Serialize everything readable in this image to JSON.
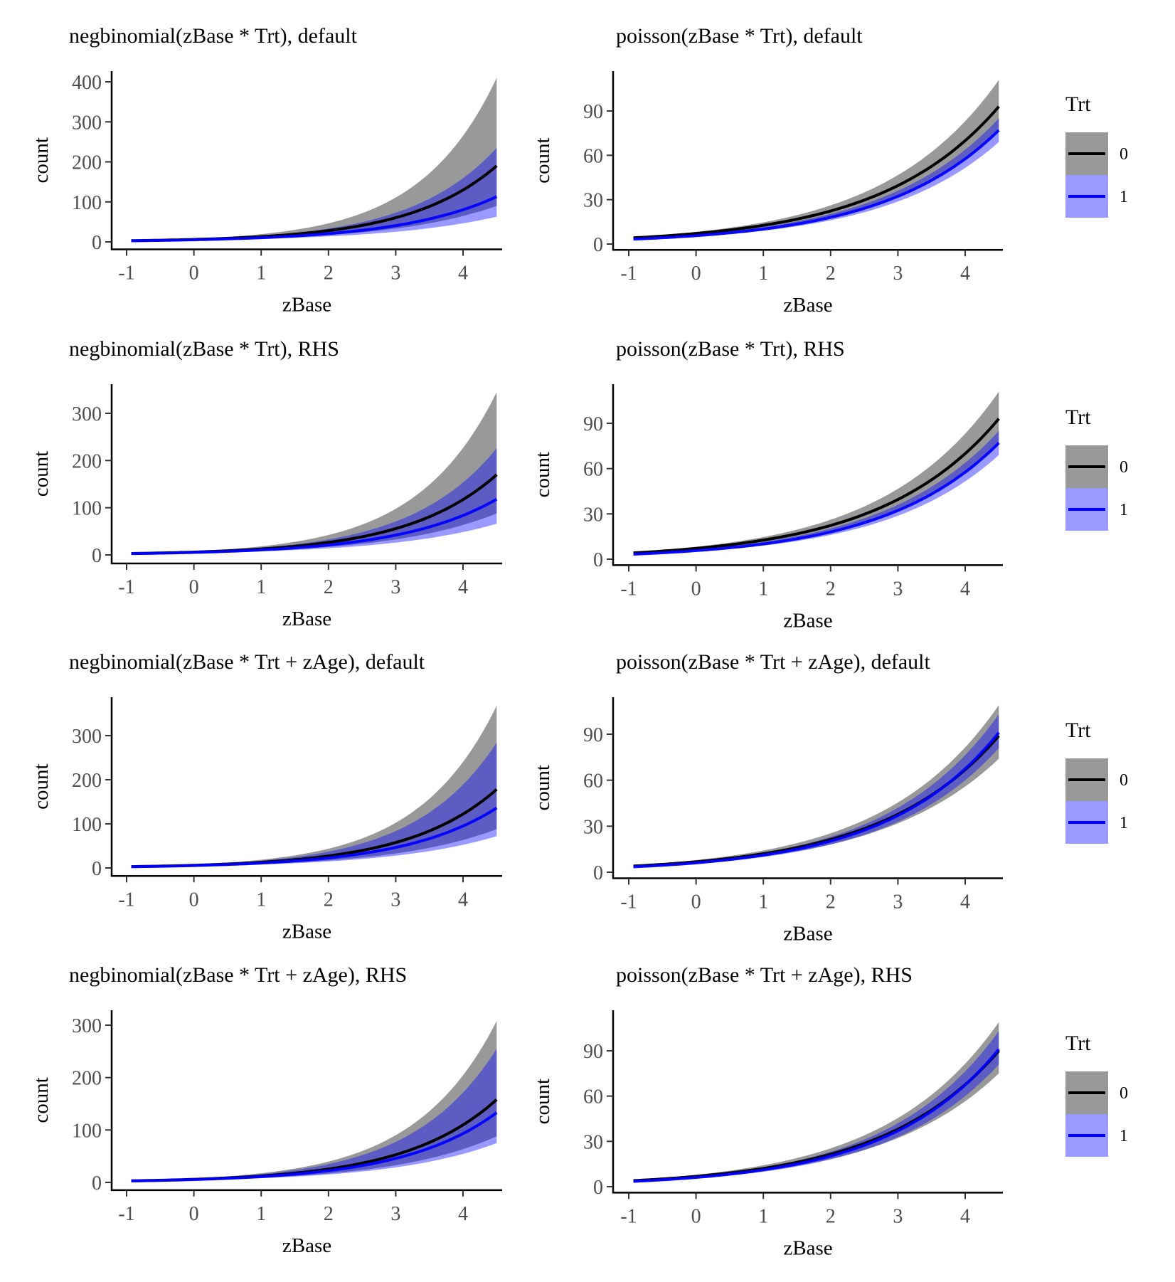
{
  "chart_data": [
    {
      "type": "line",
      "title": "negbinomial(zBase * Trt), default",
      "xlabel": "zBase",
      "ylabel": "count",
      "xlim": [
        -1.2,
        4.75
      ],
      "ylim": [
        -15,
        425
      ],
      "xticks": [
        -1,
        0,
        1,
        2,
        3,
        4
      ],
      "yticks": [
        0,
        100,
        200,
        300,
        400
      ],
      "xticklabels": [
        "-1",
        "0",
        "1",
        "2",
        "3",
        "4"
      ],
      "yticklabels": [
        "0",
        "100",
        "200",
        "300",
        "400"
      ],
      "x_range": [
        -0.93,
        4.5
      ],
      "series": [
        {
          "name": "0",
          "fit_at_x": [
            [
              -0.93,
              3.0
            ],
            [
              4.5,
              190
            ]
          ],
          "lower_at_x": [
            [
              -0.93,
              2.5
            ],
            [
              4.5,
              90
            ]
          ],
          "upper_at_x": [
            [
              -0.93,
              3.6
            ],
            [
              4.5,
              410
            ]
          ]
        },
        {
          "name": "1",
          "fit_at_x": [
            [
              -0.93,
              2.8
            ],
            [
              4.5,
              113
            ]
          ],
          "lower_at_x": [
            [
              -0.93,
              2.3
            ],
            [
              4.5,
              63
            ]
          ],
          "upper_at_x": [
            [
              -0.93,
              3.4
            ],
            [
              4.5,
              235
            ]
          ]
        }
      ],
      "legend": "none",
      "grid": false
    },
    {
      "type": "line",
      "title": "poisson(zBase * Trt), default",
      "xlabel": "zBase",
      "ylabel": "count",
      "xlim": [
        -1.2,
        4.75
      ],
      "ylim": [
        -3,
        115
      ],
      "xticks": [
        -1,
        0,
        1,
        2,
        3,
        4
      ],
      "yticks": [
        0,
        30,
        60,
        90
      ],
      "xticklabels": [
        "-1",
        "0",
        "1",
        "2",
        "3",
        "4"
      ],
      "yticklabels": [
        "0",
        "30",
        "60",
        "90"
      ],
      "x_range": [
        -0.93,
        4.5
      ],
      "series": [
        {
          "name": "0",
          "fit_at_x": [
            [
              -0.93,
              4.2
            ],
            [
              4.5,
              93
            ]
          ],
          "lower_at_x": [
            [
              -0.93,
              3.7
            ],
            [
              4.5,
              76
            ]
          ],
          "upper_at_x": [
            [
              -0.93,
              4.8
            ],
            [
              4.5,
              111
            ]
          ]
        },
        {
          "name": "1",
          "fit_at_x": [
            [
              -0.93,
              3.3
            ],
            [
              4.5,
              77
            ]
          ],
          "lower_at_x": [
            [
              -0.93,
              2.9
            ],
            [
              4.5,
              69
            ]
          ],
          "upper_at_x": [
            [
              -0.93,
              3.8
            ],
            [
              4.5,
              85
            ]
          ]
        }
      ],
      "legend": "right",
      "grid": false
    },
    {
      "type": "line",
      "title": "negbinomial(zBase * Trt), RHS",
      "xlabel": "zBase",
      "ylabel": "count",
      "xlim": [
        -1.2,
        4.75
      ],
      "ylim": [
        -15,
        365
      ],
      "xticks": [
        -1,
        0,
        1,
        2,
        3,
        4
      ],
      "yticks": [
        0,
        100,
        200,
        300
      ],
      "xticklabels": [
        "-1",
        "0",
        "1",
        "2",
        "3",
        "4"
      ],
      "yticklabels": [
        "0",
        "100",
        "200",
        "300"
      ],
      "x_range": [
        -0.93,
        4.5
      ],
      "series": [
        {
          "name": "0",
          "fit_at_x": [
            [
              -0.93,
              3.0
            ],
            [
              4.5,
              170
            ]
          ],
          "lower_at_x": [
            [
              -0.93,
              2.5
            ],
            [
              4.5,
              88
            ]
          ],
          "upper_at_x": [
            [
              -0.93,
              3.6
            ],
            [
              4.5,
              345
            ]
          ]
        },
        {
          "name": "1",
          "fit_at_x": [
            [
              -0.93,
              2.8
            ],
            [
              4.5,
              118
            ]
          ],
          "lower_at_x": [
            [
              -0.93,
              2.3
            ],
            [
              4.5,
              66
            ]
          ],
          "upper_at_x": [
            [
              -0.93,
              3.4
            ],
            [
              4.5,
              226
            ]
          ]
        }
      ],
      "legend": "none",
      "grid": false
    },
    {
      "type": "line",
      "title": "poisson(zBase * Trt), RHS",
      "xlabel": "zBase",
      "ylabel": "count",
      "xlim": [
        -1.2,
        4.75
      ],
      "ylim": [
        -3,
        115
      ],
      "xticks": [
        -1,
        0,
        1,
        2,
        3,
        4
      ],
      "yticks": [
        0,
        30,
        60,
        90
      ],
      "xticklabels": [
        "-1",
        "0",
        "1",
        "2",
        "3",
        "4"
      ],
      "yticklabels": [
        "0",
        "30",
        "60",
        "90"
      ],
      "x_range": [
        -0.93,
        4.5
      ],
      "series": [
        {
          "name": "0",
          "fit_at_x": [
            [
              -0.93,
              4.2
            ],
            [
              4.5,
              93
            ]
          ],
          "lower_at_x": [
            [
              -0.93,
              3.7
            ],
            [
              4.5,
              76
            ]
          ],
          "upper_at_x": [
            [
              -0.93,
              4.8
            ],
            [
              4.5,
              111
            ]
          ]
        },
        {
          "name": "1",
          "fit_at_x": [
            [
              -0.93,
              3.3
            ],
            [
              4.5,
              77
            ]
          ],
          "lower_at_x": [
            [
              -0.93,
              2.9
            ],
            [
              4.5,
              69
            ]
          ],
          "upper_at_x": [
            [
              -0.93,
              3.8
            ],
            [
              4.5,
              85
            ]
          ]
        }
      ],
      "legend": "right",
      "grid": false
    },
    {
      "type": "line",
      "title": "negbinomial(zBase * Trt + zAge), default",
      "xlabel": "zBase",
      "ylabel": "count",
      "xlim": [
        -1.2,
        4.75
      ],
      "ylim": [
        -15,
        385
      ],
      "xticks": [
        -1,
        0,
        1,
        2,
        3,
        4
      ],
      "yticks": [
        0,
        100,
        200,
        300
      ],
      "xticklabels": [
        "-1",
        "0",
        "1",
        "2",
        "3",
        "4"
      ],
      "yticklabels": [
        "0",
        "100",
        "200",
        "300"
      ],
      "x_range": [
        -0.93,
        4.5
      ],
      "series": [
        {
          "name": "0",
          "fit_at_x": [
            [
              -0.93,
              3.0
            ],
            [
              4.5,
              178
            ]
          ],
          "lower_at_x": [
            [
              -0.93,
              2.5
            ],
            [
              4.5,
              88
            ]
          ],
          "upper_at_x": [
            [
              -0.93,
              3.6
            ],
            [
              4.5,
              368
            ]
          ]
        },
        {
          "name": "1",
          "fit_at_x": [
            [
              -0.93,
              2.8
            ],
            [
              4.5,
              136
            ]
          ],
          "lower_at_x": [
            [
              -0.93,
              2.3
            ],
            [
              4.5,
              72
            ]
          ],
          "upper_at_x": [
            [
              -0.93,
              3.4
            ],
            [
              4.5,
              284
            ]
          ]
        }
      ],
      "legend": "none",
      "grid": false
    },
    {
      "type": "line",
      "title": "poisson(zBase * Trt + zAge), default",
      "xlabel": "zBase",
      "ylabel": "count",
      "xlim": [
        -1.2,
        4.75
      ],
      "ylim": [
        -3,
        115
      ],
      "xticks": [
        -1,
        0,
        1,
        2,
        3,
        4
      ],
      "yticks": [
        0,
        30,
        60,
        90
      ],
      "xticklabels": [
        "-1",
        "0",
        "1",
        "2",
        "3",
        "4"
      ],
      "yticklabels": [
        "0",
        "30",
        "60",
        "90"
      ],
      "x_range": [
        -0.93,
        4.5
      ],
      "series": [
        {
          "name": "0",
          "fit_at_x": [
            [
              -0.93,
              4.0
            ],
            [
              4.5,
              89
            ]
          ],
          "lower_at_x": [
            [
              -0.93,
              3.5
            ],
            [
              4.5,
              74
            ]
          ],
          "upper_at_x": [
            [
              -0.93,
              4.6
            ],
            [
              4.5,
              109
            ]
          ]
        },
        {
          "name": "1",
          "fit_at_x": [
            [
              -0.93,
              3.5
            ],
            [
              4.5,
              91
            ]
          ],
          "lower_at_x": [
            [
              -0.93,
              3.1
            ],
            [
              4.5,
              81
            ]
          ],
          "upper_at_x": [
            [
              -0.93,
              4.0
            ],
            [
              4.5,
              103
            ]
          ]
        }
      ],
      "legend": "right",
      "grid": false
    },
    {
      "type": "line",
      "title": "negbinomial(zBase * Trt + zAge), RHS",
      "xlabel": "zBase",
      "ylabel": "count",
      "xlim": [
        -1.2,
        4.75
      ],
      "ylim": [
        -12,
        322
      ],
      "xticks": [
        -1,
        0,
        1,
        2,
        3,
        4
      ],
      "yticks": [
        0,
        100,
        200,
        300
      ],
      "xticklabels": [
        "-1",
        "0",
        "1",
        "2",
        "3",
        "4"
      ],
      "yticklabels": [
        "0",
        "100",
        "200",
        "300"
      ],
      "x_range": [
        -0.93,
        4.5
      ],
      "series": [
        {
          "name": "0",
          "fit_at_x": [
            [
              -0.93,
              3.0
            ],
            [
              4.5,
              158
            ]
          ],
          "lower_at_x": [
            [
              -0.93,
              2.5
            ],
            [
              4.5,
              88
            ]
          ],
          "upper_at_x": [
            [
              -0.93,
              3.6
            ],
            [
              4.5,
              308
            ]
          ]
        },
        {
          "name": "1",
          "fit_at_x": [
            [
              -0.93,
              2.8
            ],
            [
              4.5,
              133
            ]
          ],
          "lower_at_x": [
            [
              -0.93,
              2.3
            ],
            [
              4.5,
              75
            ]
          ],
          "upper_at_x": [
            [
              -0.93,
              3.4
            ],
            [
              4.5,
              255
            ]
          ]
        }
      ],
      "legend": "none",
      "grid": false
    },
    {
      "type": "line",
      "title": "poisson(zBase * Trt + zAge), RHS",
      "xlabel": "zBase",
      "ylabel": "count",
      "xlim": [
        -1.2,
        4.75
      ],
      "ylim": [
        -3,
        115
      ],
      "xticks": [
        -1,
        0,
        1,
        2,
        3,
        4
      ],
      "yticks": [
        0,
        30,
        60,
        90
      ],
      "xticklabels": [
        "-1",
        "0",
        "1",
        "2",
        "3",
        "4"
      ],
      "yticklabels": [
        "0",
        "30",
        "60",
        "90"
      ],
      "x_range": [
        -0.93,
        4.5
      ],
      "series": [
        {
          "name": "0",
          "fit_at_x": [
            [
              -0.93,
              4.0
            ],
            [
              4.5,
              90
            ]
          ],
          "lower_at_x": [
            [
              -0.93,
              3.5
            ],
            [
              4.5,
              75
            ]
          ],
          "upper_at_x": [
            [
              -0.93,
              4.6
            ],
            [
              4.5,
              109
            ]
          ]
        },
        {
          "name": "1",
          "fit_at_x": [
            [
              -0.93,
              3.5
            ],
            [
              4.5,
              91
            ]
          ],
          "lower_at_x": [
            [
              -0.93,
              3.1
            ],
            [
              4.5,
              81
            ]
          ],
          "upper_at_x": [
            [
              -0.93,
              4.0
            ],
            [
              4.5,
              103
            ]
          ]
        }
      ],
      "legend": "right",
      "grid": false
    }
  ],
  "legend": {
    "title": "Trt",
    "entries": [
      {
        "label": "0",
        "line_color": "#000000",
        "fill_color": "#999999"
      },
      {
        "label": "1",
        "line_color": "#0000ff",
        "fill_color": "#9999ff"
      }
    ]
  },
  "colors": {
    "trt0_line": "#000000",
    "trt0_ribbon": "#999999",
    "trt1_line": "#0000ff",
    "trt1_ribbon": "#9999ff",
    "overlap_ribbon": "#5b5bbf",
    "axis": "#000000",
    "tick_text": "#4d4d4d"
  }
}
